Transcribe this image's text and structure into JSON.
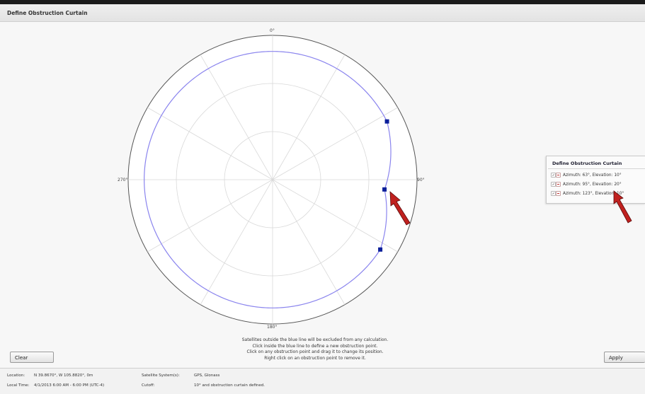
{
  "window": {
    "title": "Define Obstruction Curtain"
  },
  "plot": {
    "direction_labels": {
      "north": "0°",
      "east": "90°",
      "south": "180°",
      "west": "270°"
    },
    "curtain_color": "#8a84ee",
    "point_color": "#0b1f9a",
    "grid_color": "#d9d9d9",
    "obstruction_points": [
      {
        "azimuth": 63,
        "elevation": 10
      },
      {
        "azimuth": 95,
        "elevation": 20
      },
      {
        "azimuth": 123,
        "elevation": 10
      }
    ],
    "default_cutoff": 10
  },
  "instructions": [
    "Satellites outside the blue line will be excluded from any calculation.",
    "Click inside the blue line to define a new obstruction point.",
    "Click on any obstruction point and drag it to change its position.",
    "Right click on an obstruction point to remove it."
  ],
  "buttons": {
    "clear": "Clear",
    "apply": "Apply"
  },
  "panel": {
    "title": "Define Obstruction Curtain",
    "items": [
      "Azimuth: 63°, Elevation: 10°",
      "Azimuth: 95°, Elevation: 20°",
      "Azimuth: 123°, Elevation: 10°"
    ]
  },
  "status": {
    "location_label": "Location:",
    "location_value": "N 39.8670°, W 105.8820°, 0m",
    "local_time_label": "Local Time:",
    "local_time_value": "4/1/2013 6:00 AM - 6:00 PM (UTC-4)",
    "satellite_label": "Satellite System(s):",
    "satellite_value": "GPS, Glonass",
    "cutoff_label": "Cutoff:",
    "cutoff_value": "10° and obstruction curtain defined."
  },
  "annotation_color": "#c0211f"
}
